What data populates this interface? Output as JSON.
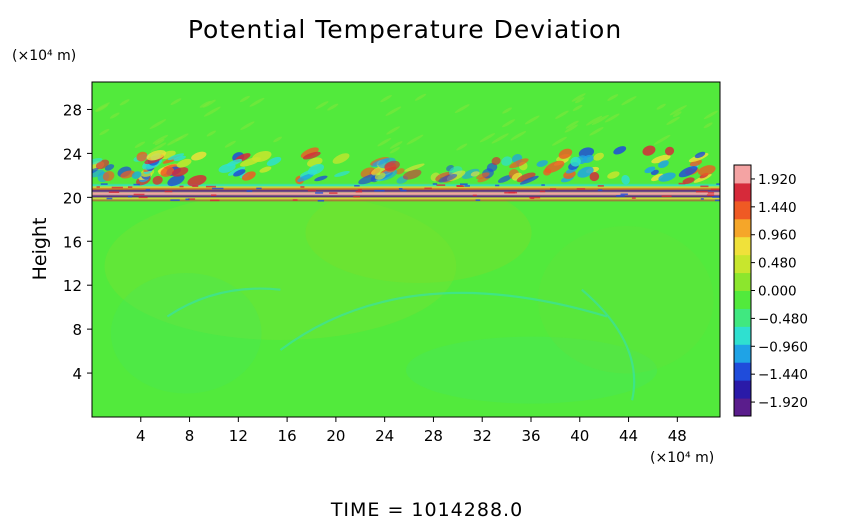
{
  "chart_data": {
    "type": "heatmap",
    "title": "Potential Temperature Deviation",
    "ylabel": "Height",
    "y_unit": "(×10⁴ m)",
    "x_unit": "(×10⁴ m)",
    "x_ticks": [
      4,
      8,
      12,
      16,
      20,
      24,
      28,
      32,
      36,
      40,
      44,
      48
    ],
    "y_ticks": [
      4,
      8,
      12,
      16,
      20,
      24,
      28
    ],
    "xlim": [
      0,
      51.5
    ],
    "ylim": [
      0,
      30.5
    ],
    "colorbar": {
      "range": [
        -2.16,
        2.16
      ],
      "tick_labels": [
        "1.920",
        "1.440",
        "0.960",
        "0.480",
        "0.000",
        "−0.480",
        "−0.960",
        "−1.440",
        "−1.920"
      ],
      "tick_values": [
        1.92,
        1.44,
        0.96,
        0.48,
        0.0,
        -0.48,
        -0.96,
        -1.44,
        -1.92
      ],
      "colors": [
        "#5a1d8c",
        "#2a1aa8",
        "#1f4cdb",
        "#1fa3e6",
        "#2fe0d0",
        "#40e880",
        "#52ea3c",
        "#8ce62d",
        "#c8e62d",
        "#f0e13a",
        "#f5a629",
        "#ef5a24",
        "#d62a3a",
        "#f4a3a3"
      ]
    },
    "field_description_values": {
      "background": 0.1,
      "band_center_height": 20.6,
      "band_extent_height": [
        19.6,
        23.0
      ]
    }
  },
  "footer": {
    "time_label": "TIME = 1014288.0"
  }
}
